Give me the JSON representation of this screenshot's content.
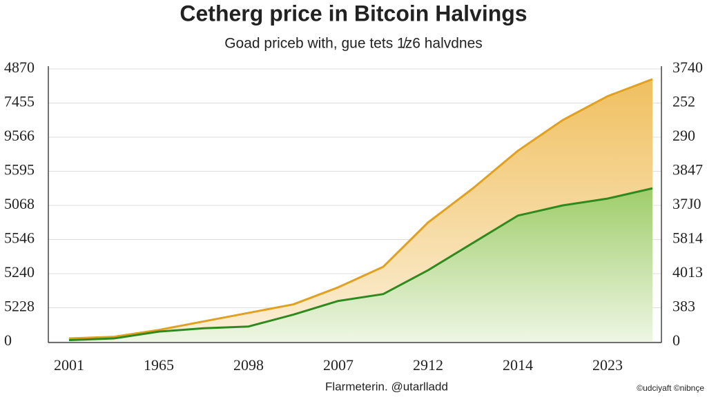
{
  "chart_data": {
    "type": "area",
    "title": "Cetherg price in Bitcoin Halvings",
    "subtitle": "Goad priceb with, gue tets 1̸z6 halvdnes",
    "footer": "Flarmeterin. @utarlladd",
    "credit": "©udciyaft ©nibnçe",
    "x": [
      0,
      0.5,
      1.0,
      1.5,
      2.0,
      2.5,
      3.0,
      3.5,
      4.0,
      4.5,
      5.0,
      5.5,
      6.0,
      6.5
    ],
    "xlim": [
      -0.05,
      6.6
    ],
    "xticks": [
      {
        "value": 0,
        "label": "2001"
      },
      {
        "value": 1,
        "label": "1965"
      },
      {
        "value": 2,
        "label": "2098"
      },
      {
        "value": 3,
        "label": "2007"
      },
      {
        "value": 4,
        "label": "2912"
      },
      {
        "value": 5,
        "label": "2014"
      },
      {
        "value": 6,
        "label": "2023"
      }
    ],
    "ylim": [
      0,
      8
    ],
    "yticks": [
      {
        "value": 0,
        "label": "0"
      },
      {
        "value": 1,
        "label": "5228"
      },
      {
        "value": 2,
        "label": "5240"
      },
      {
        "value": 3,
        "label": "5546"
      },
      {
        "value": 4,
        "label": "5068"
      },
      {
        "value": 5,
        "label": "5595"
      },
      {
        "value": 6,
        "label": "9566"
      },
      {
        "value": 7,
        "label": "7455"
      },
      {
        "value": 8,
        "label": "4870"
      }
    ],
    "y2lim": [
      0,
      8
    ],
    "y2ticks": [
      {
        "value": 0,
        "label": "0"
      },
      {
        "value": 1,
        "label": "383"
      },
      {
        "value": 2,
        "label": "4013"
      },
      {
        "value": 3,
        "label": "5814"
      },
      {
        "value": 4,
        "label": "37J0"
      },
      {
        "value": 5,
        "label": "3847"
      },
      {
        "value": 6,
        "label": "290"
      },
      {
        "value": 7,
        "label": "252"
      },
      {
        "value": 8,
        "label": "3740"
      }
    ],
    "grid": true,
    "series": [
      {
        "color": "#e0a020",
        "values": [
          0.1,
          0.15,
          0.35,
          0.6,
          0.85,
          1.1,
          1.6,
          2.2,
          3.5,
          4.5,
          5.6,
          6.5,
          7.2,
          7.7
        ]
      },
      {
        "color": "#2e8a1e",
        "values": [
          0.05,
          0.1,
          0.3,
          0.4,
          0.45,
          0.8,
          1.2,
          1.4,
          2.1,
          2.9,
          3.7,
          4.0,
          4.2,
          4.5
        ]
      }
    ]
  }
}
